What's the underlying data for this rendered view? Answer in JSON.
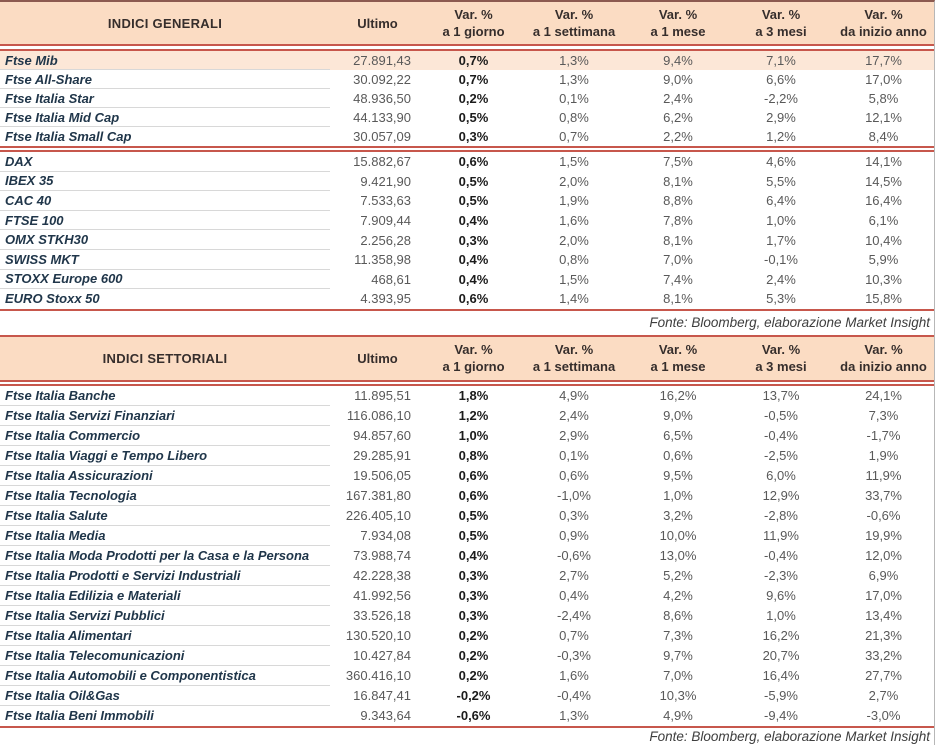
{
  "fonte_label": "Fonte: Bloomberg, elaborazione Market Insight",
  "columns": {
    "ultimo": "Ultimo",
    "var_label": "Var. %",
    "periods": [
      "a 1 giorno",
      "a 1 settimana",
      "a 1 mese",
      "a 3 mesi",
      "da inizio anno"
    ]
  },
  "colors": {
    "accent_red": "#C7574C",
    "header_peach": "#FBDCC3",
    "highlight_row": "#FCE7D7"
  },
  "tables": [
    {
      "title": "INDICI GENERALI",
      "groups": [
        {
          "rows": [
            {
              "name": "Ftse Mib",
              "ultimo": "27.891,43",
              "d1": "0,7%",
              "w1": "1,3%",
              "m1": "9,4%",
              "m3": "7,1%",
              "ytd": "17,7%",
              "highlight": true
            },
            {
              "name": "Ftse All-Share",
              "ultimo": "30.092,22",
              "d1": "0,7%",
              "w1": "1,3%",
              "m1": "9,0%",
              "m3": "6,6%",
              "ytd": "17,0%"
            },
            {
              "name": "Ftse Italia Star",
              "ultimo": "48.936,50",
              "d1": "0,2%",
              "w1": "0,1%",
              "m1": "2,4%",
              "m3": "-2,2%",
              "ytd": "5,8%"
            },
            {
              "name": "Ftse Italia Mid Cap",
              "ultimo": "44.133,90",
              "d1": "0,5%",
              "w1": "0,8%",
              "m1": "6,2%",
              "m3": "2,9%",
              "ytd": "12,1%"
            },
            {
              "name": "Ftse Italia Small Cap",
              "ultimo": "30.057,09",
              "d1": "0,3%",
              "w1": "0,7%",
              "m1": "2,2%",
              "m3": "1,2%",
              "ytd": "8,4%"
            }
          ]
        },
        {
          "rows": [
            {
              "name": "DAX",
              "ultimo": "15.882,67",
              "d1": "0,6%",
              "w1": "1,5%",
              "m1": "7,5%",
              "m3": "4,6%",
              "ytd": "14,1%"
            },
            {
              "name": "IBEX 35",
              "ultimo": "9.421,90",
              "d1": "0,5%",
              "w1": "2,0%",
              "m1": "8,1%",
              "m3": "5,5%",
              "ytd": "14,5%"
            },
            {
              "name": "CAC 40",
              "ultimo": "7.533,63",
              "d1": "0,5%",
              "w1": "1,9%",
              "m1": "8,8%",
              "m3": "6,4%",
              "ytd": "16,4%"
            },
            {
              "name": "FTSE 100",
              "ultimo": "7.909,44",
              "d1": "0,4%",
              "w1": "1,6%",
              "m1": "7,8%",
              "m3": "1,0%",
              "ytd": "6,1%"
            },
            {
              "name": "OMX STKH30",
              "ultimo": "2.256,28",
              "d1": "0,3%",
              "w1": "2,0%",
              "m1": "8,1%",
              "m3": "1,7%",
              "ytd": "10,4%"
            },
            {
              "name": "SWISS MKT",
              "ultimo": "11.358,98",
              "d1": "0,4%",
              "w1": "0,8%",
              "m1": "7,0%",
              "m3": "-0,1%",
              "ytd": "5,9%"
            },
            {
              "name": "STOXX Europe 600",
              "ultimo": "468,61",
              "d1": "0,4%",
              "w1": "1,5%",
              "m1": "7,4%",
              "m3": "2,4%",
              "ytd": "10,3%"
            },
            {
              "name": "EURO Stoxx 50",
              "ultimo": "4.393,95",
              "d1": "0,6%",
              "w1": "1,4%",
              "m1": "8,1%",
              "m3": "5,3%",
              "ytd": "15,8%"
            }
          ]
        }
      ]
    },
    {
      "title": "INDICI SETTORIALI",
      "groups": [
        {
          "rows": [
            {
              "name": "Ftse Italia Banche",
              "ultimo": "11.895,51",
              "d1": "1,8%",
              "w1": "4,9%",
              "m1": "16,2%",
              "m3": "13,7%",
              "ytd": "24,1%"
            },
            {
              "name": "Ftse Italia Servizi Finanziari",
              "ultimo": "116.086,10",
              "d1": "1,2%",
              "w1": "2,4%",
              "m1": "9,0%",
              "m3": "-0,5%",
              "ytd": "7,3%"
            },
            {
              "name": "Ftse Italia Commercio",
              "ultimo": "94.857,60",
              "d1": "1,0%",
              "w1": "2,9%",
              "m1": "6,5%",
              "m3": "-0,4%",
              "ytd": "-1,7%"
            },
            {
              "name": "Ftse Italia Viaggi e Tempo Libero",
              "ultimo": "29.285,91",
              "d1": "0,8%",
              "w1": "0,1%",
              "m1": "0,6%",
              "m3": "-2,5%",
              "ytd": "1,9%"
            },
            {
              "name": "Ftse Italia Assicurazioni",
              "ultimo": "19.506,05",
              "d1": "0,6%",
              "w1": "0,6%",
              "m1": "9,5%",
              "m3": "6,0%",
              "ytd": "11,9%"
            },
            {
              "name": "Ftse Italia Tecnologia",
              "ultimo": "167.381,80",
              "d1": "0,6%",
              "w1": "-1,0%",
              "m1": "1,0%",
              "m3": "12,9%",
              "ytd": "33,7%"
            },
            {
              "name": "Ftse Italia Salute",
              "ultimo": "226.405,10",
              "d1": "0,5%",
              "w1": "0,3%",
              "m1": "3,2%",
              "m3": "-2,8%",
              "ytd": "-0,6%"
            },
            {
              "name": "Ftse Italia Media",
              "ultimo": "7.934,08",
              "d1": "0,5%",
              "w1": "0,9%",
              "m1": "10,0%",
              "m3": "11,9%",
              "ytd": "19,9%"
            },
            {
              "name": "Ftse Italia Moda Prodotti per la Casa e la Persona",
              "ultimo": "73.988,74",
              "d1": "0,4%",
              "w1": "-0,6%",
              "m1": "13,0%",
              "m3": "-0,4%",
              "ytd": "12,0%"
            },
            {
              "name": "Ftse Italia Prodotti e Servizi Industriali",
              "ultimo": "42.228,38",
              "d1": "0,3%",
              "w1": "2,7%",
              "m1": "5,2%",
              "m3": "-2,3%",
              "ytd": "6,9%"
            },
            {
              "name": "Ftse Italia Edilizia e Materiali",
              "ultimo": "41.992,56",
              "d1": "0,3%",
              "w1": "0,4%",
              "m1": "4,2%",
              "m3": "9,6%",
              "ytd": "17,0%"
            },
            {
              "name": "Ftse Italia Servizi Pubblici",
              "ultimo": "33.526,18",
              "d1": "0,3%",
              "w1": "-2,4%",
              "m1": "8,6%",
              "m3": "1,0%",
              "ytd": "13,4%"
            },
            {
              "name": "Ftse Italia Alimentari",
              "ultimo": "130.520,10",
              "d1": "0,2%",
              "w1": "0,7%",
              "m1": "7,3%",
              "m3": "16,2%",
              "ytd": "21,3%"
            },
            {
              "name": "Ftse Italia Telecomunicazioni",
              "ultimo": "10.427,84",
              "d1": "0,2%",
              "w1": "-0,3%",
              "m1": "9,7%",
              "m3": "20,7%",
              "ytd": "33,2%"
            },
            {
              "name": "Ftse Italia Automobili e Componentistica",
              "ultimo": "360.416,10",
              "d1": "0,2%",
              "w1": "1,6%",
              "m1": "7,0%",
              "m3": "16,4%",
              "ytd": "27,7%"
            },
            {
              "name": "Ftse Italia Oil&Gas",
              "ultimo": "16.847,41",
              "d1": "-0,2%",
              "w1": "-0,4%",
              "m1": "10,3%",
              "m3": "-5,9%",
              "ytd": "2,7%"
            },
            {
              "name": "Ftse Italia Beni Immobili",
              "ultimo": "9.343,64",
              "d1": "-0,6%",
              "w1": "1,3%",
              "m1": "4,9%",
              "m3": "-9,4%",
              "ytd": "-3,0%"
            }
          ]
        }
      ]
    }
  ]
}
